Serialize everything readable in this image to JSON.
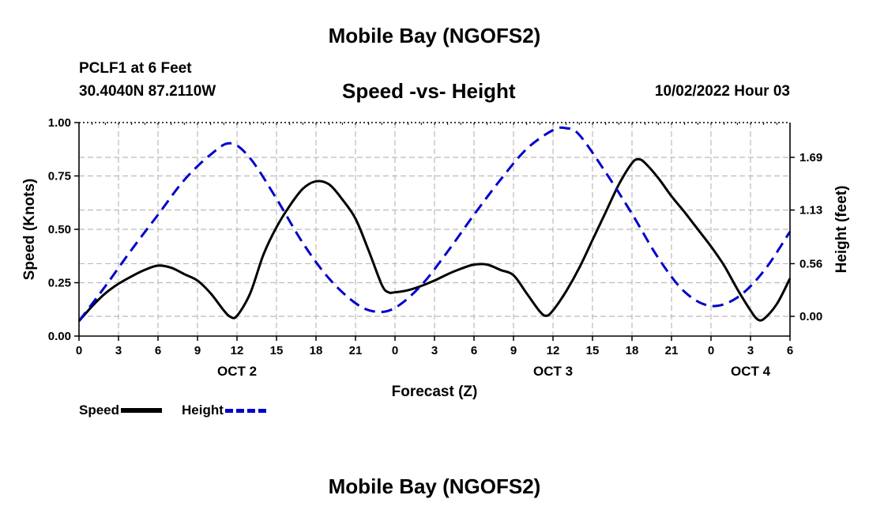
{
  "header": {
    "title": "Mobile Bay (NGOFS2)",
    "station": "PCLF1 at 6 Feet",
    "coords": "30.4040N  87.2110W",
    "subtitle": "Speed -vs- Height",
    "datetime": "10/02/2022 Hour 03"
  },
  "footer": {
    "title": "Mobile Bay (NGOFS2)"
  },
  "legend": {
    "speed_label": "Speed",
    "height_label": "Height"
  },
  "colors": {
    "speed": "#000000",
    "height": "#0000cc",
    "grid": "#bbbbbb"
  },
  "chart_data": {
    "type": "line",
    "xlabel": "Forecast (Z)",
    "ylabel_left": "Speed (Knots)",
    "ylabel_right": "Height (feet)",
    "x_unit": "forecast hours from 00Z Oct 2",
    "xlim": [
      0,
      54
    ],
    "ylim_left": [
      0,
      1.0
    ],
    "ylim_right": [
      -0.21,
      2.06
    ],
    "x_ticks": [
      {
        "x": 0,
        "label": "0"
      },
      {
        "x": 3,
        "label": "3"
      },
      {
        "x": 6,
        "label": "6"
      },
      {
        "x": 9,
        "label": "9"
      },
      {
        "x": 12,
        "label": "12"
      },
      {
        "x": 15,
        "label": "15"
      },
      {
        "x": 18,
        "label": "18"
      },
      {
        "x": 21,
        "label": "21"
      },
      {
        "x": 24,
        "label": "0"
      },
      {
        "x": 27,
        "label": "3"
      },
      {
        "x": 30,
        "label": "6"
      },
      {
        "x": 33,
        "label": "9"
      },
      {
        "x": 36,
        "label": "12"
      },
      {
        "x": 39,
        "label": "15"
      },
      {
        "x": 42,
        "label": "18"
      },
      {
        "x": 45,
        "label": "21"
      },
      {
        "x": 48,
        "label": "0"
      },
      {
        "x": 51,
        "label": "3"
      },
      {
        "x": 54,
        "label": "6"
      }
    ],
    "date_labels": [
      {
        "x": 12,
        "label": "OCT 2"
      },
      {
        "x": 36,
        "label": "OCT 3"
      },
      {
        "x": 51,
        "label": "OCT 4"
      }
    ],
    "y_ticks_left": [
      "0.00",
      "0.25",
      "0.50",
      "0.75",
      "1.00"
    ],
    "y_ticks_right": [
      "0.00",
      "0.56",
      "1.13",
      "1.69"
    ],
    "series": [
      {
        "name": "Speed",
        "axis": "left",
        "style": "solid",
        "x": [
          0,
          1,
          2,
          3,
          4,
          5,
          6,
          7,
          8,
          9,
          10,
          11,
          11.5,
          12,
          13,
          14,
          15,
          16,
          17,
          18,
          19,
          20,
          21,
          22,
          23,
          23.5,
          24,
          25,
          26,
          27,
          28,
          29,
          30,
          31,
          32,
          33,
          34,
          35,
          35.5,
          36,
          37,
          38,
          39,
          40,
          41,
          42,
          42.5,
          43,
          44,
          45,
          46,
          47,
          48,
          49,
          50,
          51,
          51.5,
          52,
          53,
          54
        ],
        "values": [
          0.07,
          0.14,
          0.2,
          0.245,
          0.28,
          0.31,
          0.33,
          0.32,
          0.29,
          0.26,
          0.2,
          0.12,
          0.09,
          0.095,
          0.2,
          0.38,
          0.51,
          0.61,
          0.69,
          0.725,
          0.71,
          0.64,
          0.55,
          0.4,
          0.24,
          0.205,
          0.205,
          0.215,
          0.235,
          0.26,
          0.29,
          0.315,
          0.335,
          0.335,
          0.31,
          0.285,
          0.2,
          0.115,
          0.095,
          0.12,
          0.21,
          0.32,
          0.45,
          0.58,
          0.71,
          0.81,
          0.828,
          0.81,
          0.74,
          0.655,
          0.58,
          0.5,
          0.42,
          0.33,
          0.22,
          0.12,
          0.08,
          0.08,
          0.15,
          0.27
        ]
      },
      {
        "name": "Height",
        "axis": "right",
        "style": "dashed",
        "x": [
          0,
          2,
          4,
          6,
          8,
          10,
          11.5,
          13,
          15,
          17,
          19,
          21,
          22.5,
          24,
          26,
          28,
          30,
          32,
          34,
          36,
          37,
          38,
          40,
          42,
          44,
          46,
          48,
          50,
          52,
          54
        ],
        "values": [
          -0.05,
          0.32,
          0.71,
          1.08,
          1.45,
          1.72,
          1.84,
          1.68,
          1.25,
          0.78,
          0.4,
          0.14,
          0.05,
          0.09,
          0.33,
          0.69,
          1.08,
          1.45,
          1.78,
          1.98,
          2.0,
          1.93,
          1.53,
          1.09,
          0.62,
          0.26,
          0.11,
          0.2,
          0.48,
          0.9
        ]
      }
    ]
  }
}
